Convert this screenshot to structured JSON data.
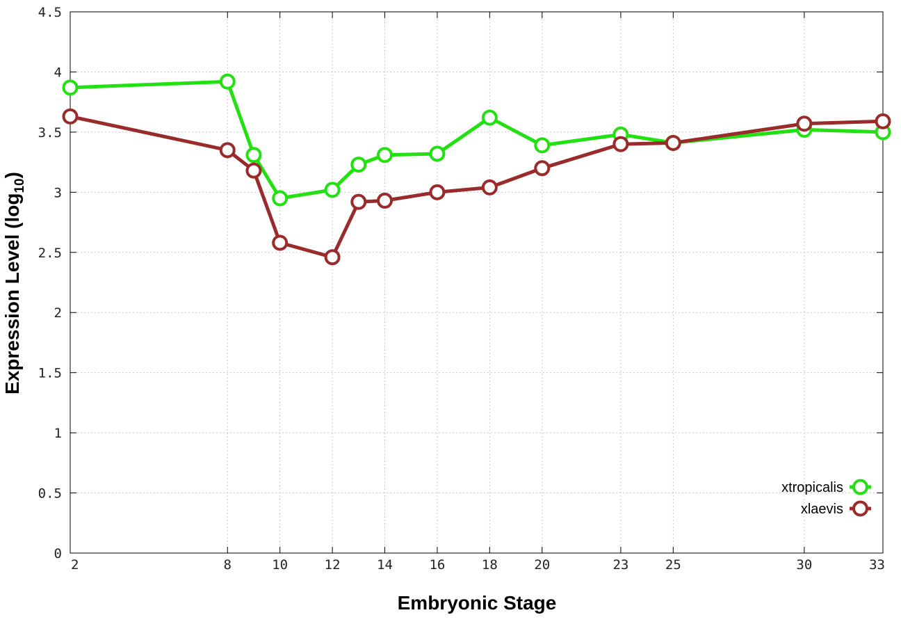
{
  "chart_data": {
    "type": "line",
    "xlabel": "Embryonic Stage",
    "ylabel_main": "Expression Level (log",
    "ylabel_sub": "10",
    "ylabel_close": ")",
    "xlim": [
      2,
      33
    ],
    "ylim": [
      0,
      4.5
    ],
    "x_ticks": [
      2,
      8,
      10,
      12,
      14,
      16,
      18,
      20,
      23,
      25,
      30,
      33
    ],
    "y_ticks": [
      0,
      0.5,
      1,
      1.5,
      2,
      2.5,
      3,
      3.5,
      4,
      4.5
    ],
    "y_tick_labels": [
      "0",
      "0.5",
      "1",
      "1.5",
      "2",
      "2.5",
      "3",
      "3.5",
      "4",
      "4.5"
    ],
    "grid": true,
    "legend_position": "bottom-right",
    "series": [
      {
        "name": "xtropicalis",
        "color": "#22e012",
        "x": [
          2,
          8,
          9,
          10,
          12,
          13,
          14,
          16,
          18,
          20,
          23,
          25,
          30,
          33
        ],
        "y": [
          3.87,
          3.92,
          3.31,
          2.95,
          3.02,
          3.23,
          3.31,
          3.32,
          3.62,
          3.39,
          3.48,
          3.41,
          3.52,
          3.5
        ]
      },
      {
        "name": "xlaevis",
        "color": "#992b2b",
        "x": [
          2,
          8,
          9,
          10,
          12,
          13,
          14,
          16,
          18,
          20,
          23,
          25,
          30,
          33
        ],
        "y": [
          3.63,
          3.35,
          3.18,
          2.58,
          2.46,
          2.92,
          2.93,
          3.0,
          3.04,
          3.2,
          3.4,
          3.41,
          3.57,
          3.59
        ]
      }
    ]
  }
}
